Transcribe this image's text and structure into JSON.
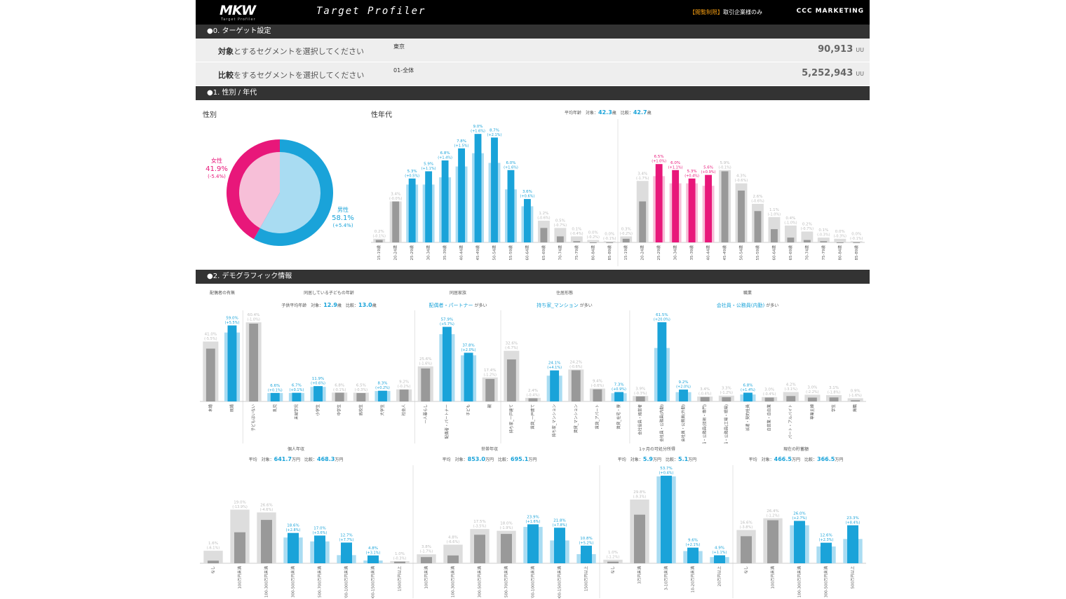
{
  "header": {
    "logo": "MKW",
    "logo_sub": "Target Profiler",
    "app_title": "Target Profiler",
    "notice_highlight": "【閲覧制限】",
    "notice_text": "取引企業様のみ",
    "brand": "CCC MARKETING"
  },
  "section0": {
    "title": "●0. ターゲット設定",
    "target": {
      "label_bold": "対象",
      "label_rest": "とするセグメントを選択してください",
      "value": "東京",
      "count": "90,913",
      "unit": "UU"
    },
    "compare": {
      "label_bold": "比較",
      "label_rest": "をするセグメントを選択してください",
      "value": "01-全体",
      "count": "5,252,943",
      "unit": "UU"
    }
  },
  "section1": {
    "title": "●1. 性別 / 年代",
    "gender_title": "性別",
    "agegroup_title": "性年代",
    "avg_label": "平均年齢",
    "avg_target_label": "対象：",
    "avg_target": "42.3",
    "avg_compare_label": "比較：",
    "avg_compare": "42.7",
    "avg_unit": "歳",
    "female": {
      "label": "女性",
      "pct": "41.9%",
      "diff": "(-5.4%)"
    },
    "male": {
      "label": "男性",
      "pct": "58.1%",
      "diff": "(+5.4%)"
    }
  },
  "section2": {
    "title": "●2. デモグラフィック情報",
    "heads": {
      "spouse": "配偶者の有無",
      "children": "同居している子どもの年齢",
      "children_avg": "子供平均年齢　対象：",
      "children_avg_t": "12.9",
      "children_avg_c_label": "歳　比較：",
      "children_avg_c": "13.0",
      "children_avg_unit": "歳",
      "family": "同居家族",
      "family_top": "配偶者・パートナー",
      "family_suffix": "が多い",
      "housing": "住居形態",
      "housing_top": "持ち家_マンション",
      "housing_suffix": "が多い",
      "job": "職業",
      "job_top": "会社員・公務員(内勤)",
      "job_suffix": "が多い",
      "income": "個人年収",
      "income_avg": "平均　対象：",
      "income_t": "641.7",
      "income_c_label": "万円　比較：",
      "income_c": "468.3",
      "income_unit": "万円",
      "hh_income": "世帯年収",
      "hh_avg": "平均　対象：",
      "hh_t": "853.0",
      "hh_c_label": "万円　比較：",
      "hh_c": "695.1",
      "hh_unit": "万円",
      "disposable": "1ヶ月の可処分所得",
      "disp_avg": "平均　対象：",
      "disp_t": "5.9",
      "disp_c_label": "万円　比較：",
      "disp_c": "5.1",
      "disp_unit": "万円",
      "savings": "現在の貯蓄額",
      "sav_avg": "平均　対象：",
      "sav_t": "466.5",
      "sav_c_label": "万円　比較：",
      "sav_c": "366.5",
      "sav_unit": "万円"
    }
  },
  "colors": {
    "target": "#1aa3d9",
    "target_light": "#a9dcf2",
    "female": "#e8177a",
    "female_light": "#f7bfd8",
    "compare": "#999999",
    "compare_light": "#dddddd"
  },
  "chart_data": [
    {
      "type": "pie",
      "title": "性別",
      "categories": [
        "女性",
        "男性"
      ],
      "values": [
        41.9,
        58.1
      ],
      "diffs": [
        "(-5.4%)",
        "(+5.4%)"
      ]
    },
    {
      "type": "bar",
      "title": "性年代",
      "categories": [
        "15-19歳",
        "20-24歳",
        "25-29歳",
        "30-34歳",
        "35-39歳",
        "40-44歳",
        "45-49歳",
        "50-54歳",
        "55-59歳",
        "60-64歳",
        "65-69歳",
        "70-74歳",
        "75-79歳",
        "80-84歳",
        "85-89歳",
        "15-19歳",
        "20-24歳",
        "25-29歳",
        "30-34歳",
        "35-39歳",
        "40-44歳",
        "45-49歳",
        "50-54歳",
        "55-59歳",
        "60-64歳",
        "65-69歳",
        "70-74歳",
        "75-79歳",
        "80-84歳",
        "85-89歳"
      ],
      "series": [
        {
          "name": "対象",
          "values": [
            0.2,
            3.4,
            5.3,
            5.9,
            6.8,
            7.8,
            9.0,
            8.7,
            6.0,
            3.6,
            1.2,
            0.5,
            0.1,
            0.0,
            0.0,
            0.3,
            3.4,
            6.5,
            6.0,
            5.3,
            5.6,
            5.9,
            4.3,
            2.6,
            1.1,
            0.4,
            0.2,
            0.1,
            0.0,
            0.0
          ]
        }
      ],
      "labels": [
        "0.2%\n(-0.1%)",
        "3.4%\n(-0.0%)",
        "5.3%\n(+0.5%)",
        "5.9%\n(+1.1%)",
        "6.8%\n(+1.4%)",
        "7.8%\n(+1.5%)",
        "9.0%\n(+1.6%)",
        "8.7%\n(+2.1%)",
        "6.0%\n(+1.6%)",
        "3.6%\n(+0.6%)",
        "1.2%\n(-0.6%)",
        "0.5%\n(-0.7%)",
        "0.1%\n(-0.4%)",
        "0.0%\n(-0.2%)",
        "0.0%\n(-0.1%)",
        "0.3%\n(-0.2%)",
        "3.4%\n(-1.7%)",
        "6.5%\n(+1.0%)",
        "6.0%\n(+1.1%)",
        "5.3%\n(+0.4%)",
        "5.6%\n(+0.9%)",
        "5.9%\n(-0.1%)",
        "4.3%\n(-0.6%)",
        "2.6%\n(-0.6%)",
        "1.1%\n(-1.0%)",
        "0.4%\n(-1.0%)",
        "0.2%\n(-0.7%)",
        "0.1%\n(-0.3%)",
        "0.0%\n(-0.3%)",
        "0.0%\n(-0.1%)"
      ]
    },
    {
      "type": "bar",
      "title": "配偶者の有無 / 同居している子どもの年齢 / 同居家族 / 住居形態 / 職業",
      "categories": [
        "未婚",
        "既婚",
        "子どもはいない",
        "乳児",
        "未就学児",
        "小学生",
        "中学生",
        "高校生",
        "大学生",
        "社会人",
        "一人暮らし",
        "配偶者・パートナー",
        "子ども",
        "親",
        "持ち家_一戸建て",
        "賃貸_一戸建て",
        "持ち家_マンション",
        "賃貸_マンション",
        "賃貸_アパート",
        "賃貸_社宅・寮",
        "会社役員・経営者",
        "会社員・公務員(内勤)",
        "会社員・公務員(外勤)",
        "会社員・公務員(技術・専門)",
        "会社員・公務員(工場・現場)",
        "派遣・契約社員",
        "自営業・自由業",
        "パート・アルバイト",
        "専業主婦",
        "学生",
        "無職"
      ],
      "series": [
        {
          "name": "対象",
          "values": [
            41.0,
            59.0,
            60.4,
            6.6,
            6.7,
            11.9,
            6.8,
            6.5,
            8.3,
            9.2,
            25.6,
            57.9,
            37.8,
            17.4,
            32.6,
            2.4,
            24.1,
            24.2,
            9.4,
            7.3,
            3.9,
            61.5,
            9.2,
            3.4,
            3.3,
            6.8,
            3.0,
            4.2,
            3.0,
            3.1,
            0.9
          ]
        }
      ],
      "labels": [
        "41.0%\n(-5.5%)",
        "59.0%\n(+5.5%)",
        "60.4%\n(-1.0%)",
        "6.6%\n(+0.1%)",
        "6.7%\n(+0.1%)",
        "11.9%\n(+0.6%)",
        "6.8%\n(-0.1%)",
        "6.5%\n(-0.3%)",
        "8.3%\n(+0.2%)",
        "9.2%\n(-0.2%)",
        "25.6%\n(-1.6%)",
        "57.9%\n(+5.7%)",
        "37.8%\n(+2.0%)",
        "17.4%\n(-1.2%)",
        "32.6%\n(-6.7%)",
        "2.4%\n(-0.4%)",
        "24.1%\n(+4.1%)",
        "24.2%\n(-0.6%)",
        "9.4%\n(-0.6%)",
        "7.3%\n(+0.9%)",
        "3.9%\n(-0.3%)",
        "61.5%\n(+20.0%)",
        "9.2%\n(+2.0%)",
        "3.4%\n(-0.4%)",
        "3.3%\n(-1.2%)",
        "6.8%\n(+1.4%)",
        "3.0%\n(-0.4%)",
        "4.2%\n(-3.1%)",
        "3.0%\n(-2.2%)",
        "3.1%\n(-1.8%)",
        "0.9%\n(-1.6%)"
      ]
    },
    {
      "type": "bar",
      "title": "個人年収 / 世帯年収 / 1ヶ月の可処分所得 / 現在の貯蓄額",
      "categories": [
        "なし",
        "100万円未満",
        "100-300万円未満",
        "300-500万円未満",
        "500-700万円未満",
        "700-1000万円未満",
        "1000-1500万円未満",
        "1500万円以上",
        "100万円未満",
        "100-300万円未満",
        "300-500万円未満",
        "500-700万円未満",
        "700-1000万円未満",
        "1000-1500万円未満",
        "1500万円以上",
        "なし",
        "3万円未満",
        "3-10万円未満",
        "10-20万円未満",
        "20万円以上",
        "なし",
        "100万円未満",
        "100-300万円未満",
        "300-500万円未満",
        "500万円以上"
      ],
      "series": [
        {
          "name": "対象",
          "values": [
            1.6,
            19.0,
            26.6,
            18.6,
            17.0,
            12.7,
            4.8,
            1.0,
            3.8,
            4.8,
            17.5,
            18.0,
            23.9,
            21.8,
            10.8,
            1.0,
            29.8,
            53.7,
            9.6,
            4.9,
            16.6,
            26.4,
            26.0,
            12.6,
            23.3
          ]
        }
      ],
      "labels": [
        "1.6%\n(-6.1%)",
        "19.0%\n(-13.9%)",
        "26.6%\n(-4.6%)",
        "18.6%\n(+2.8%)",
        "17.0%\n(+3.6%)",
        "12.7%\n(+7.7%)",
        "4.8%\n(+3.1%)",
        "1.0%\n(-0.3%)",
        "3.8%\n(-1.7%)",
        "4.8%\n(-6.6%)",
        "17.5%\n(-3.5%)",
        "18.0%\n(-1.9%)",
        "23.9%\n(+1.6%)",
        "21.8%\n(+7.8%)",
        "10.8%\n(+5.2%)",
        "1.0%\n(-1.2%)",
        "29.8%\n(-9.3%)",
        "53.7%\n(+0.4%)",
        "9.6%\n(+2.1%)",
        "4.9%\n(+1.1%)",
        "16.6%\n(-3.8%)",
        "26.4%\n(-1.2%)",
        "26.0%\n(+2.7%)",
        "12.6%\n(+2.3%)",
        "23.3%\n(+8.4%)"
      ]
    }
  ]
}
